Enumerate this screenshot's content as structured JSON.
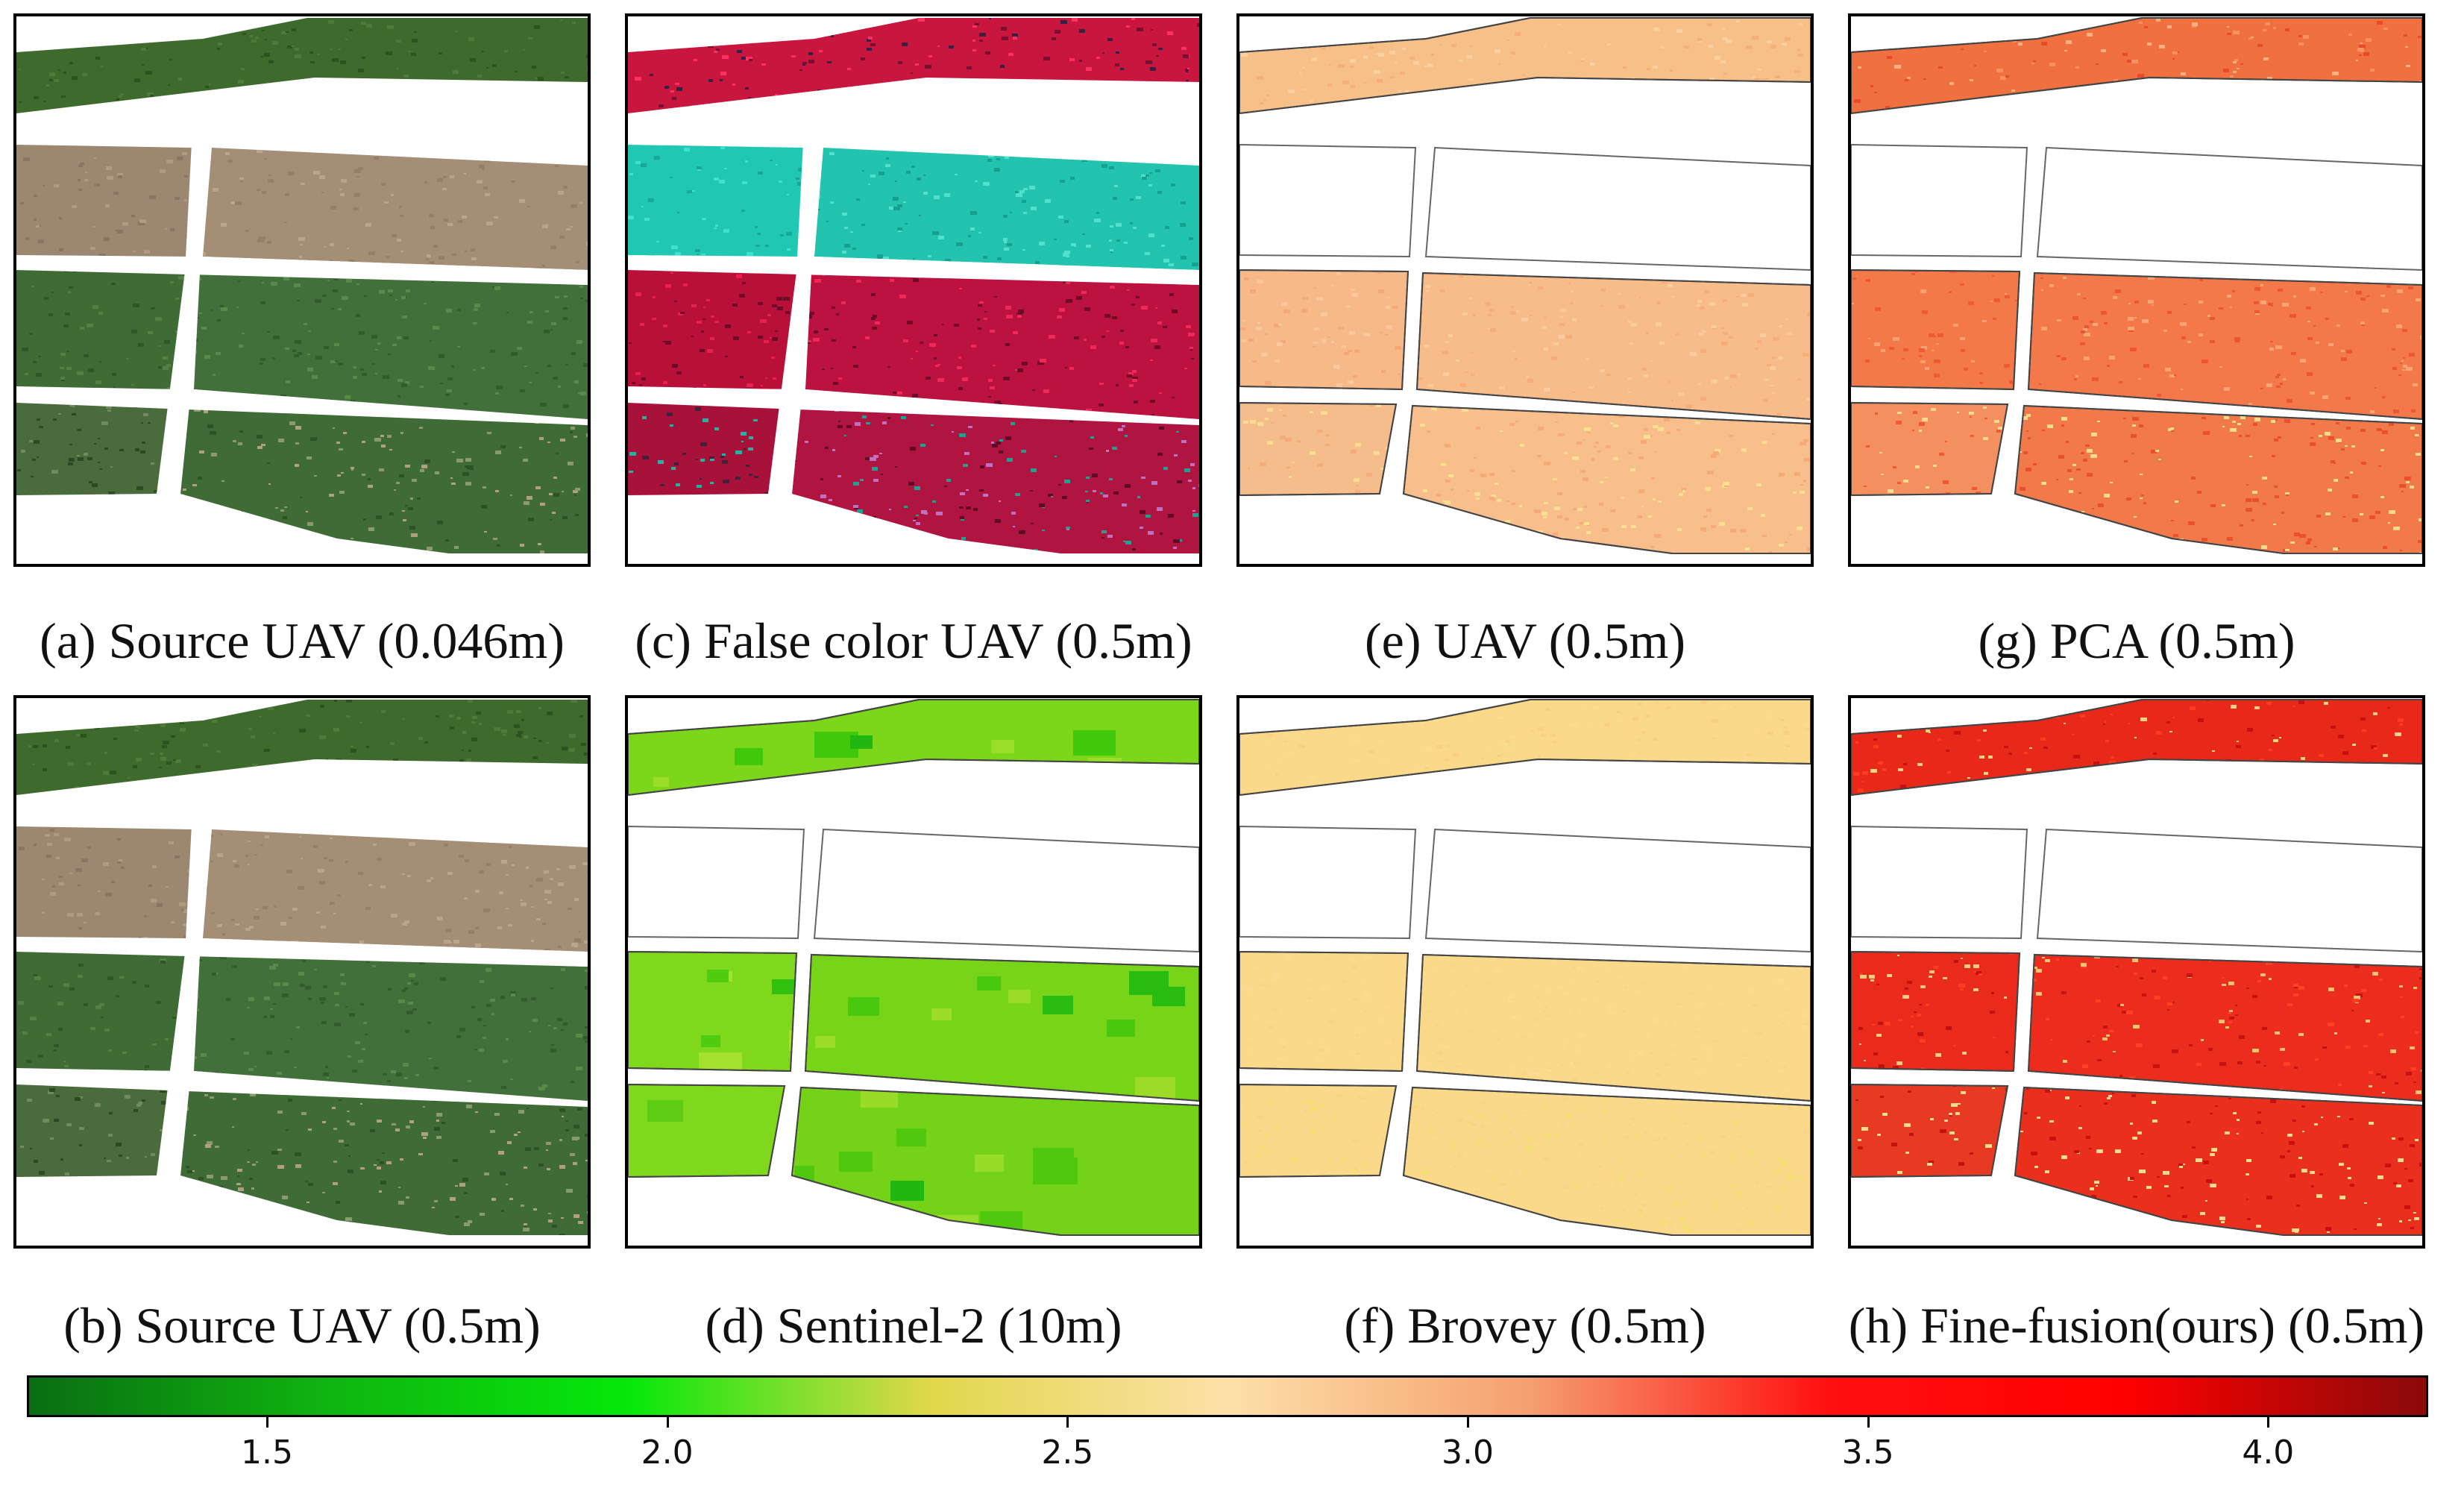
{
  "figure": {
    "panels": [
      {
        "id": "a",
        "caption": "(a) Source UAV (0.046m)",
        "kind": "rgb"
      },
      {
        "id": "c",
        "caption": "(c) False color UAV (0.5m)",
        "kind": "falsecolor"
      },
      {
        "id": "e",
        "caption": "(e) UAV (0.5m)",
        "kind": "map-uav"
      },
      {
        "id": "g",
        "caption": "(g) PCA (0.5m)",
        "kind": "map-pca"
      },
      {
        "id": "b",
        "caption": "(b) Source UAV (0.5m)",
        "kind": "rgb"
      },
      {
        "id": "d",
        "caption": "(d) Sentinel-2 (10m)",
        "kind": "map-s2"
      },
      {
        "id": "f",
        "caption": "(f) Brovey (0.5m)",
        "kind": "map-brovey"
      },
      {
        "id": "h",
        "caption": "(h) Fine-fusion(ours) (0.5m)",
        "kind": "map-fine"
      }
    ],
    "colorbar": {
      "min": 1.2,
      "max": 4.2,
      "ticks": [
        "1.5",
        "2.0",
        "2.5",
        "3.0",
        "3.5",
        "4.0"
      ],
      "colors": [
        "#0a6e12",
        "#0fb510",
        "#05e80a",
        "#e0d84a",
        "#fde0a8",
        "#f5a070",
        "#ff1010",
        "#ff0000",
        "#8a0a0a"
      ]
    }
  }
}
